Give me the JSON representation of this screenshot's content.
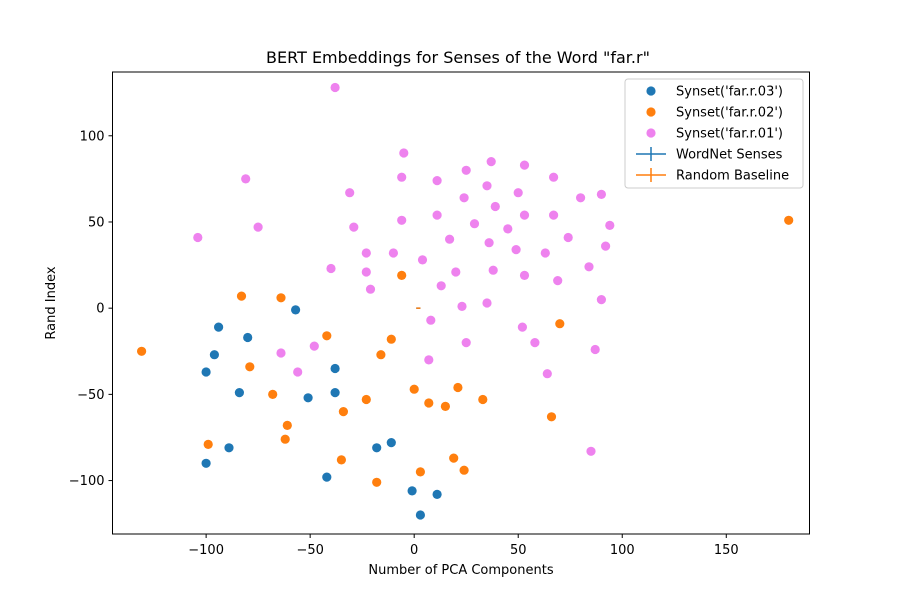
{
  "chart_data": {
    "type": "scatter",
    "title": "BERT Embeddings for Senses of the Word \"far.r\"",
    "xlabel": "Number of PCA Components",
    "ylabel": "Rand Index",
    "xlim": [
      -145,
      190
    ],
    "ylim": [
      -131,
      137
    ],
    "xticks": [
      -100,
      -50,
      0,
      50,
      100,
      150
    ],
    "yticks": [
      -100,
      -50,
      0,
      50,
      100
    ],
    "xtick_labels": [
      "−100",
      "−50",
      "0",
      "50",
      "100",
      "150"
    ],
    "ytick_labels": [
      "−100",
      "−50",
      "0",
      "50",
      "100"
    ],
    "grid": false,
    "legend_position": "top-right",
    "legend": [
      {
        "label": "Synset('far.r.03')",
        "color": "#1f77b4",
        "marker": "dot"
      },
      {
        "label": "Synset('far.r.02')",
        "color": "#ff7f0e",
        "marker": "dot"
      },
      {
        "label": "Synset('far.r.01')",
        "color": "#ee82ee",
        "marker": "dot"
      },
      {
        "label": "WordNet Senses",
        "color": "#1f77b4",
        "marker": "errorbar"
      },
      {
        "label": "Random Baseline",
        "color": "#ff7f0e",
        "marker": "errorbar"
      }
    ],
    "series": [
      {
        "name": "Synset('far.r.03')",
        "color": "#1f77b4",
        "points": [
          [
            -57,
            -1
          ],
          [
            -94,
            -11
          ],
          [
            -80,
            -17
          ],
          [
            -96,
            -27
          ],
          [
            -100,
            -37
          ],
          [
            -38,
            -35
          ],
          [
            -84,
            -49
          ],
          [
            -51,
            -52
          ],
          [
            -38,
            -49
          ],
          [
            -100,
            -90
          ],
          [
            -89,
            -81
          ],
          [
            -18,
            -81
          ],
          [
            -11,
            -78
          ],
          [
            -42,
            -98
          ],
          [
            -1,
            -106
          ],
          [
            11,
            -108
          ],
          [
            3,
            -120
          ]
        ]
      },
      {
        "name": "Synset('far.r.02')",
        "color": "#ff7f0e",
        "points": [
          [
            180,
            51
          ],
          [
            -131,
            -25
          ],
          [
            -83,
            7
          ],
          [
            -64,
            6
          ],
          [
            -6,
            19
          ],
          [
            -42,
            -16
          ],
          [
            -11,
            -18
          ],
          [
            -16,
            -27
          ],
          [
            70,
            -9
          ],
          [
            -79,
            -34
          ],
          [
            -68,
            -50
          ],
          [
            0,
            -47
          ],
          [
            21,
            -46
          ],
          [
            33,
            -53
          ],
          [
            7,
            -55
          ],
          [
            15,
            -57
          ],
          [
            -23,
            -53
          ],
          [
            -34,
            -60
          ],
          [
            66,
            -63
          ],
          [
            -61,
            -68
          ],
          [
            -62,
            -76
          ],
          [
            -99,
            -79
          ],
          [
            -35,
            -88
          ],
          [
            19,
            -87
          ],
          [
            3,
            -95
          ],
          [
            24,
            -94
          ],
          [
            -18,
            -101
          ]
        ]
      },
      {
        "name": "Synset('far.r.01')",
        "color": "#ee82ee",
        "points": [
          [
            -38,
            128
          ],
          [
            -5,
            90
          ],
          [
            37,
            85
          ],
          [
            53,
            83
          ],
          [
            25,
            80
          ],
          [
            -81,
            75
          ],
          [
            -6,
            76
          ],
          [
            11,
            74
          ],
          [
            67,
            76
          ],
          [
            35,
            71
          ],
          [
            -31,
            67
          ],
          [
            50,
            67
          ],
          [
            24,
            64
          ],
          [
            80,
            64
          ],
          [
            90,
            66
          ],
          [
            11,
            54
          ],
          [
            -6,
            51
          ],
          [
            39,
            59
          ],
          [
            53,
            54
          ],
          [
            67,
            54
          ],
          [
            -104,
            41
          ],
          [
            -75,
            47
          ],
          [
            -29,
            47
          ],
          [
            29,
            49
          ],
          [
            45,
            46
          ],
          [
            94,
            48
          ],
          [
            -23,
            32
          ],
          [
            17,
            40
          ],
          [
            36,
            38
          ],
          [
            74,
            41
          ],
          [
            -10,
            32
          ],
          [
            4,
            28
          ],
          [
            49,
            34
          ],
          [
            63,
            32
          ],
          [
            92,
            36
          ],
          [
            -40,
            23
          ],
          [
            -23,
            21
          ],
          [
            20,
            21
          ],
          [
            38,
            22
          ],
          [
            53,
            19
          ],
          [
            84,
            24
          ],
          [
            -21,
            11
          ],
          [
            13,
            13
          ],
          [
            69,
            16
          ],
          [
            23,
            1
          ],
          [
            35,
            3
          ],
          [
            90,
            5
          ],
          [
            8,
            -7
          ],
          [
            52,
            -11
          ],
          [
            -64,
            -26
          ],
          [
            -48,
            -22
          ],
          [
            25,
            -20
          ],
          [
            58,
            -20
          ],
          [
            87,
            -24
          ],
          [
            7,
            -30
          ],
          [
            -56,
            -37
          ],
          [
            64,
            -38
          ],
          [
            85,
            -83
          ]
        ]
      }
    ],
    "errorbars": [
      {
        "name": "WordNet Senses",
        "color": "#1f77b4",
        "x": 2,
        "y": 0,
        "xerr": 1,
        "yerr": 0
      },
      {
        "name": "Random Baseline",
        "color": "#ff7f0e",
        "x": 2,
        "y": 0,
        "xerr": 1,
        "yerr": 0
      }
    ]
  }
}
